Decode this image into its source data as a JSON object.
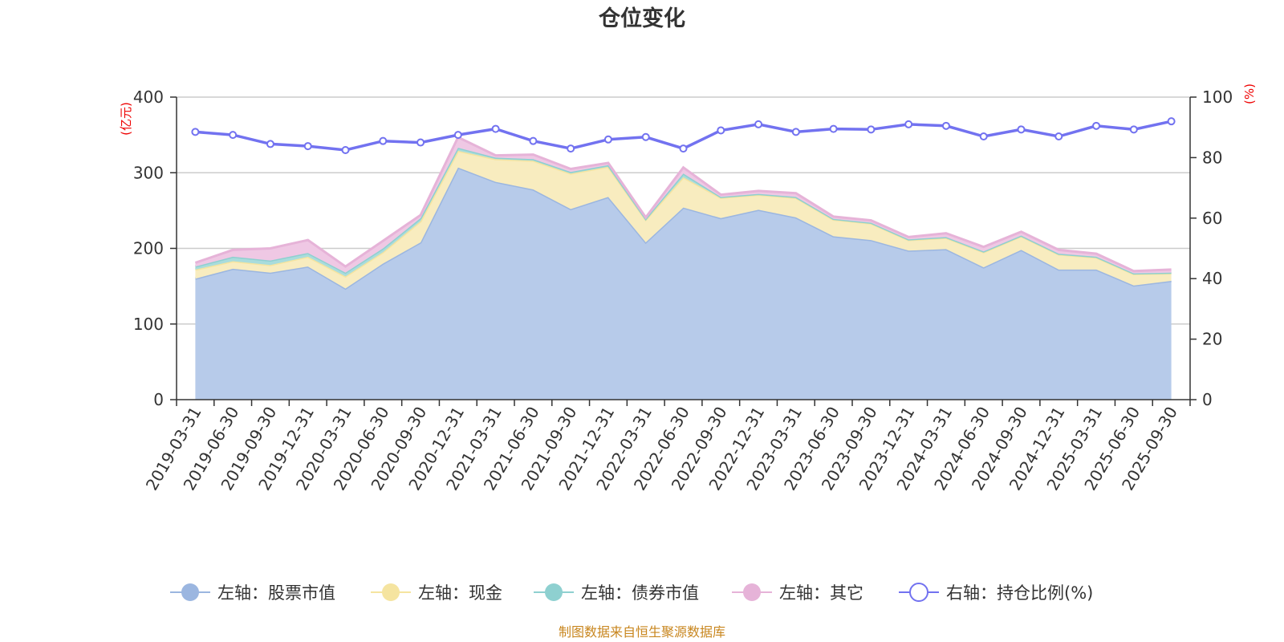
{
  "chart_data": {
    "type": "area",
    "title": "仓位变化",
    "left_axis_unit": "(亿元)",
    "right_axis_unit": "(%)",
    "left_ylim": [
      0,
      400
    ],
    "left_ticks": [
      "0",
      "100",
      "200",
      "300",
      "400"
    ],
    "right_ylim": [
      0,
      100
    ],
    "right_ticks": [
      "0",
      "20",
      "40",
      "60",
      "80",
      "100"
    ],
    "categories": [
      "2019-03-31",
      "2019-06-30",
      "2019-09-30",
      "2019-12-31",
      "2020-03-31",
      "2020-06-30",
      "2020-09-30",
      "2020-12-31",
      "2021-03-31",
      "2021-06-30",
      "2021-09-30",
      "2021-12-31",
      "2022-03-31",
      "2022-06-30",
      "2022-09-30",
      "2022-12-31",
      "2023-03-31",
      "2023-06-30",
      "2023-09-30",
      "2023-12-31",
      "2024-03-31",
      "2024-06-30",
      "2024-09-30",
      "2024-12-31",
      "2025-03-31",
      "2025-06-30",
      "2025-09-30"
    ],
    "stacked_series": [
      {
        "name": "左轴：股票市值",
        "color": "#9bb6e0",
        "fill": "#b7cbea",
        "values": [
          160,
          173,
          168,
          176,
          147,
          180,
          208,
          307,
          288,
          278,
          252,
          268,
          208,
          254,
          240,
          251,
          241,
          216,
          211,
          197,
          199,
          175,
          198,
          172,
          172,
          151,
          157
        ]
      },
      {
        "name": "左轴：现金",
        "color": "#f5e4a0",
        "fill": "#f8ecbf",
        "values": [
          12,
          10,
          10,
          13,
          16,
          15,
          28,
          22,
          30,
          38,
          47,
          40,
          30,
          40,
          27,
          20,
          26,
          22,
          22,
          14,
          15,
          20,
          18,
          20,
          16,
          15,
          10
        ]
      },
      {
        "name": "左轴：债券市值",
        "color": "#8ed0d0",
        "fill": "#a9dcdc",
        "values": [
          4,
          6,
          6,
          5,
          5,
          5,
          4,
          4,
          2,
          2,
          2,
          2,
          1,
          5,
          1,
          1,
          1,
          1,
          1,
          1,
          1,
          1,
          1,
          1,
          1,
          1,
          1
        ]
      },
      {
        "name": "左轴：其它",
        "color": "#e6b3d8",
        "fill": "#efc8e4",
        "values": [
          5,
          9,
          16,
          17,
          8,
          10,
          4,
          14,
          3,
          6,
          4,
          3,
          2,
          8,
          3,
          4,
          5,
          3,
          3,
          3,
          5,
          6,
          5,
          5,
          4,
          3,
          4
        ]
      }
    ],
    "line_series": {
      "name": "右轴：持仓比例(%)",
      "color": "#7272f0",
      "values": [
        88.5,
        87.5,
        84.5,
        83.8,
        82.5,
        85.5,
        85.0,
        87.5,
        89.5,
        85.5,
        83.0,
        86.0,
        86.8,
        83.0,
        89.0,
        91.0,
        88.5,
        89.5,
        89.3,
        91.0,
        90.5,
        87.0,
        89.3,
        87.0,
        90.5,
        89.3,
        92.0
      ]
    },
    "footer": "制图数据来自恒生聚源数据库"
  }
}
